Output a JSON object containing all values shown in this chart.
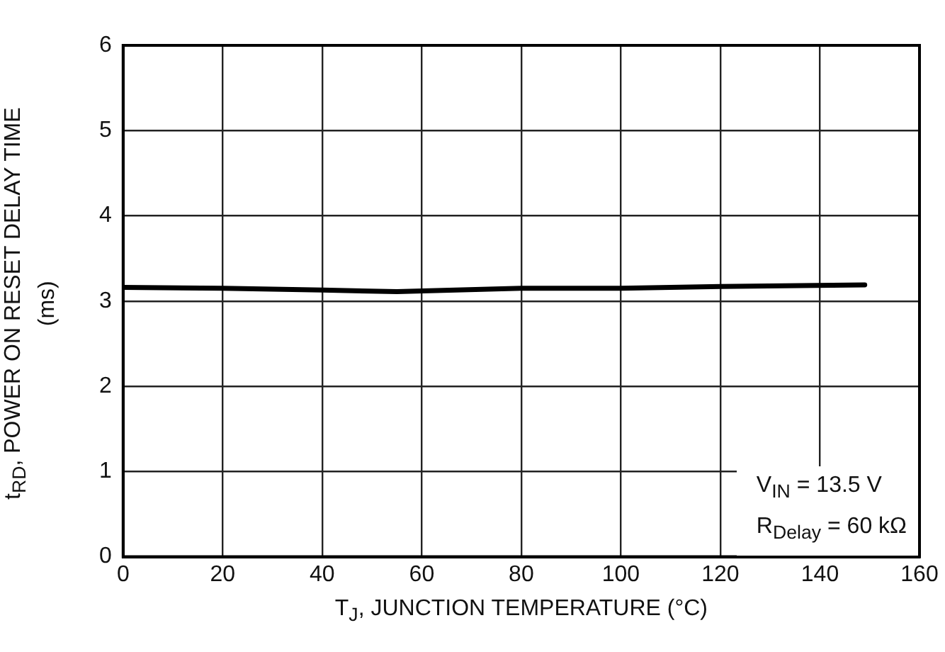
{
  "chart_data": {
    "type": "line",
    "xlabel": "T$_{J}$, JUNCTION TEMPERATURE (°C)",
    "ylabel": "t$_{RD}$, POWER ON RESET DELAY TIME (ms)",
    "x": [
      0,
      20,
      40,
      55,
      80,
      100,
      120,
      149
    ],
    "series": [
      {
        "color": "#000000",
        "values": [
          3.16,
          3.15,
          3.13,
          3.11,
          3.15,
          3.15,
          3.17,
          3.19
        ]
      }
    ],
    "xlim": [
      0,
      160
    ],
    "xticks": [
      0,
      20,
      40,
      60,
      80,
      100,
      120,
      140,
      160
    ],
    "ylim": [
      0,
      6
    ],
    "yticks": [
      0,
      1,
      2,
      3,
      4,
      5,
      6
    ],
    "grid": true,
    "legend": false,
    "marker": "none",
    "line_style": "solid",
    "annotations": [
      "V$_{IN}$ = 13.5 V",
      "R$_{Delay}$ = 60 kΩ"
    ]
  }
}
